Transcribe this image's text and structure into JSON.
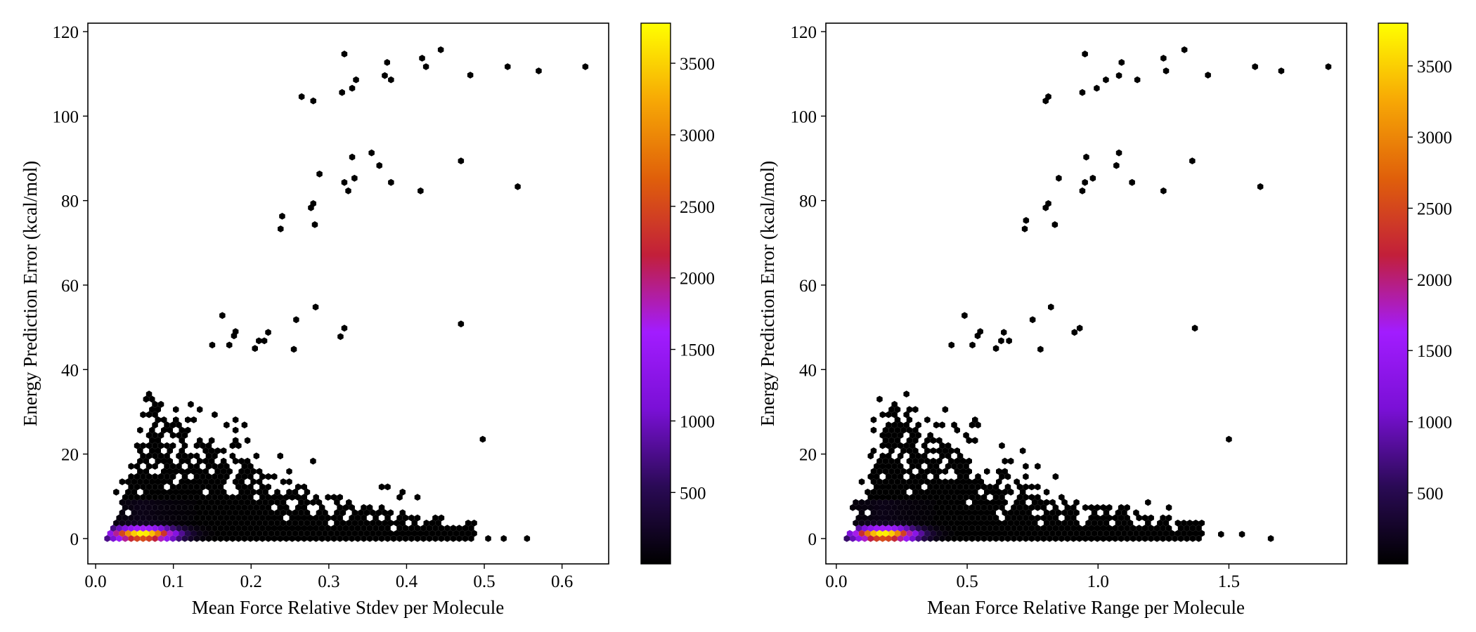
{
  "colormap": [
    "#000000",
    "#2a0a55",
    "#7a10d6",
    "#a21cff",
    "#c21f3a",
    "#e0600a",
    "#f7a805",
    "#ffff00"
  ],
  "chart_data": [
    {
      "type": "hexbin",
      "xlabel": "Mean Force Relative Stdev per Molecule",
      "ylabel": "Energy Prediction Error (kcal/mol)",
      "xlim": [
        -0.01,
        0.66
      ],
      "ylim": [
        -6,
        122
      ],
      "xticks": [
        0.0,
        0.1,
        0.2,
        0.3,
        0.4,
        0.5,
        0.6
      ],
      "xtick_labels": [
        "0.0",
        "0.1",
        "0.2",
        "0.3",
        "0.4",
        "0.5",
        "0.6"
      ],
      "yticks": [
        0,
        20,
        40,
        60,
        80,
        100,
        120
      ],
      "ytick_labels": [
        "0",
        "20",
        "40",
        "60",
        "80",
        "100",
        "120"
      ],
      "colorbar": {
        "range": [
          1,
          3780
        ],
        "ticks": [
          500,
          1000,
          1500,
          2000,
          2500,
          3000,
          3500
        ],
        "tick_labels": [
          "500",
          "1000",
          "1500",
          "2000",
          "2500",
          "3000",
          "3500"
        ]
      },
      "dense_core": {
        "x_center": 0.06,
        "x_spread": 0.045,
        "y_center": 1.0
      },
      "cloud": {
        "x_min": 0.015,
        "x_max": 0.49,
        "y_max": 35
      },
      "outliers": [
        [
          0.15,
          45.8
        ],
        [
          0.163,
          52.8
        ],
        [
          0.172,
          45.8
        ],
        [
          0.178,
          48
        ],
        [
          0.18,
          49
        ],
        [
          0.205,
          45
        ],
        [
          0.21,
          46.8
        ],
        [
          0.217,
          46.8
        ],
        [
          0.222,
          48.8
        ],
        [
          0.255,
          44.8
        ],
        [
          0.258,
          51.8
        ],
        [
          0.283,
          54.8
        ],
        [
          0.315,
          47.8
        ],
        [
          0.32,
          49.8
        ],
        [
          0.47,
          50.8
        ],
        [
          0.498,
          23.5
        ],
        [
          0.238,
          73.3
        ],
        [
          0.24,
          76.3
        ],
        [
          0.277,
          78.3
        ],
        [
          0.28,
          79.3
        ],
        [
          0.282,
          74.3
        ],
        [
          0.288,
          86.3
        ],
        [
          0.32,
          84.3
        ],
        [
          0.325,
          82.3
        ],
        [
          0.33,
          90.3
        ],
        [
          0.333,
          85.3
        ],
        [
          0.355,
          91.3
        ],
        [
          0.365,
          88.3
        ],
        [
          0.38,
          84.3
        ],
        [
          0.418,
          82.3
        ],
        [
          0.47,
          89.4
        ],
        [
          0.543,
          83.3
        ],
        [
          0.265,
          104.6
        ],
        [
          0.28,
          103.6
        ],
        [
          0.317,
          105.6
        ],
        [
          0.32,
          114.7
        ],
        [
          0.33,
          106.6
        ],
        [
          0.335,
          108.6
        ],
        [
          0.372,
          109.6
        ],
        [
          0.375,
          112.7
        ],
        [
          0.38,
          108.6
        ],
        [
          0.42,
          113.7
        ],
        [
          0.425,
          111.7
        ],
        [
          0.444,
          115.7
        ],
        [
          0.482,
          109.7
        ],
        [
          0.53,
          111.7
        ],
        [
          0.57,
          110.7
        ],
        [
          0.63,
          111.7
        ],
        [
          0.525,
          0.0
        ],
        [
          0.555,
          0.0
        ],
        [
          0.505,
          0.0
        ]
      ]
    },
    {
      "type": "hexbin",
      "xlabel": "Mean Force Relative Range per Molecule",
      "ylabel": "Energy Prediction Error (kcal/mol)",
      "xlim": [
        -0.04,
        1.95
      ],
      "ylim": [
        -6,
        122
      ],
      "xticks": [
        0.0,
        0.5,
        1.0,
        1.5
      ],
      "xtick_labels": [
        "0.0",
        "0.5",
        "1.0",
        "1.5"
      ],
      "yticks": [
        0,
        20,
        40,
        60,
        80,
        100,
        120
      ],
      "ytick_labels": [
        "0",
        "20",
        "40",
        "60",
        "80",
        "100",
        "120"
      ],
      "colorbar": {
        "range": [
          1,
          3800
        ],
        "ticks": [
          500,
          1000,
          1500,
          2000,
          2500,
          3000,
          3500
        ],
        "tick_labels": [
          "500",
          "1000",
          "1500",
          "2000",
          "2500",
          "3000",
          "3500"
        ]
      },
      "dense_core": {
        "x_center": 0.18,
        "x_spread": 0.13,
        "y_center": 1.0
      },
      "cloud": {
        "x_min": 0.04,
        "x_max": 1.4,
        "y_max": 35
      },
      "outliers": [
        [
          0.44,
          45.8
        ],
        [
          0.49,
          52.8
        ],
        [
          0.52,
          45.8
        ],
        [
          0.54,
          48
        ],
        [
          0.55,
          49
        ],
        [
          0.61,
          45
        ],
        [
          0.63,
          46.8
        ],
        [
          0.64,
          48.8
        ],
        [
          0.66,
          46.8
        ],
        [
          0.75,
          51.8
        ],
        [
          0.78,
          44.8
        ],
        [
          0.82,
          54.8
        ],
        [
          0.91,
          48.8
        ],
        [
          0.93,
          49.8
        ],
        [
          1.37,
          49.8
        ],
        [
          1.5,
          23.5
        ],
        [
          0.72,
          73.3
        ],
        [
          0.725,
          75.3
        ],
        [
          0.8,
          78.3
        ],
        [
          0.81,
          79.3
        ],
        [
          0.835,
          74.3
        ],
        [
          0.85,
          85.3
        ],
        [
          0.94,
          82.3
        ],
        [
          0.95,
          84.3
        ],
        [
          0.955,
          90.3
        ],
        [
          0.98,
          85.3
        ],
        [
          1.07,
          88.3
        ],
        [
          1.08,
          91.3
        ],
        [
          1.13,
          84.3
        ],
        [
          1.25,
          82.3
        ],
        [
          1.36,
          89.4
        ],
        [
          1.62,
          83.3
        ],
        [
          0.8,
          103.6
        ],
        [
          0.81,
          104.6
        ],
        [
          0.94,
          105.6
        ],
        [
          0.95,
          114.7
        ],
        [
          0.995,
          106.6
        ],
        [
          1.03,
          108.6
        ],
        [
          1.08,
          109.6
        ],
        [
          1.09,
          112.7
        ],
        [
          1.15,
          108.6
        ],
        [
          1.25,
          113.7
        ],
        [
          1.26,
          110.7
        ],
        [
          1.33,
          115.7
        ],
        [
          1.42,
          109.7
        ],
        [
          1.6,
          111.7
        ],
        [
          1.7,
          110.7
        ],
        [
          1.88,
          111.7
        ],
        [
          1.55,
          1.0
        ],
        [
          1.66,
          0.0
        ],
        [
          1.47,
          1.0
        ]
      ]
    }
  ]
}
